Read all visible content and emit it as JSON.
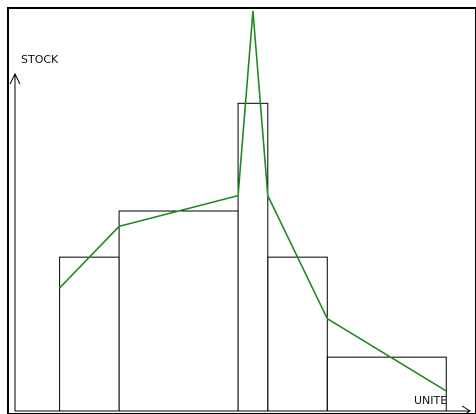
{
  "chart_data": {
    "type": "bar",
    "title": "",
    "xlabel": "UNITE",
    "ylabel": "STOCK",
    "bins": [
      {
        "start": 1,
        "end": 3,
        "value": 10
      },
      {
        "start": 3,
        "end": 7,
        "value": 13
      },
      {
        "start": 7,
        "end": 8,
        "value": 20
      },
      {
        "start": 8,
        "end": 10,
        "value": 10
      },
      {
        "start": 10,
        "end": 14,
        "value": 3.5
      }
    ],
    "polygon": [
      {
        "x": 1,
        "y": 8
      },
      {
        "x": 3,
        "y": 12
      },
      {
        "x": 7,
        "y": 14
      },
      {
        "x": 7.5,
        "y": 26
      },
      {
        "x": 8,
        "y": 14
      },
      {
        "x": 10,
        "y": 6
      },
      {
        "x": 14,
        "y": 1.3
      }
    ],
    "xlim": [
      -0.5,
      15
    ],
    "ylim": [
      0,
      26
    ],
    "colors": {
      "bars_stroke": "#000000",
      "line": "#1f8a1f"
    }
  }
}
